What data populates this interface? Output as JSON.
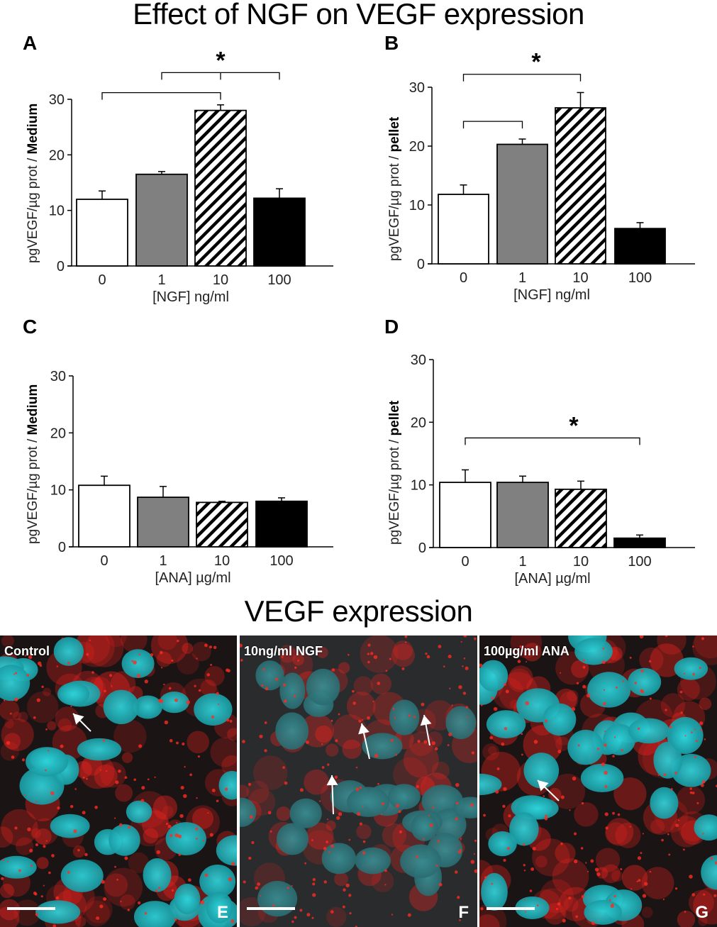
{
  "main_title": "Effect of NGF on VEGF expression",
  "micro_title": "VEGF expression",
  "colors": {
    "control": "#ffffff",
    "low": "#808080",
    "mid": "hatched",
    "high": "#000000",
    "nucleus": "#1fb5bd",
    "vegf_stain": "#e8231f"
  },
  "chart_data": [
    {
      "panel": "A",
      "type": "bar",
      "title": "",
      "xlabel": "[NGF] ng/ml",
      "ylabel": "pgVEGF/µg prot / ",
      "ylabel_bold": "Medium",
      "categories": [
        "0",
        "1",
        "10",
        "100"
      ],
      "values": [
        12,
        16.5,
        28,
        12.2
      ],
      "errors": [
        1.5,
        0.5,
        1.0,
        1.7
      ],
      "fills": [
        "white",
        "gray",
        "hatch",
        "black"
      ],
      "ylim": [
        0,
        30
      ],
      "yticks": [
        "0",
        "10",
        "20",
        "30"
      ],
      "grid": false,
      "significance": [
        {
          "from": 0,
          "to": 2,
          "level": 31.2
        },
        {
          "from": 1,
          "to": 3,
          "level": 34.8,
          "mid": 2
        }
      ],
      "significance_label": "*"
    },
    {
      "panel": "B",
      "type": "bar",
      "title": "",
      "xlabel": "[NGF] ng/ml",
      "ylabel": "pgVEGF/µg prot / ",
      "ylabel_bold": "pellet",
      "categories": [
        "0",
        "1",
        "10",
        "100"
      ],
      "values": [
        11.8,
        20.3,
        26.5,
        6.0
      ],
      "errors": [
        1.6,
        0.9,
        2.6,
        1.0
      ],
      "fills": [
        "white",
        "gray",
        "hatch",
        "black"
      ],
      "ylim": [
        0,
        30
      ],
      "yticks": [
        "0",
        "10",
        "20",
        "30"
      ],
      "grid": false,
      "significance": [
        {
          "from": 0,
          "to": 2,
          "level": 32.2
        },
        {
          "from": 0,
          "to": 1,
          "level": 24.2
        }
      ],
      "significance_label": "*"
    },
    {
      "panel": "C",
      "type": "bar",
      "title": "",
      "xlabel": "[ANA] µg/ml",
      "ylabel": "pgVEGF/µg prot / ",
      "ylabel_bold": "Medium",
      "categories": [
        "0",
        "1",
        "10",
        "100"
      ],
      "values": [
        10.8,
        8.7,
        7.8,
        8.0
      ],
      "errors": [
        1.6,
        1.9,
        0.2,
        0.6
      ],
      "fills": [
        "white",
        "gray",
        "hatch",
        "black"
      ],
      "ylim": [
        0,
        30
      ],
      "yticks": [
        "0",
        "10",
        "20",
        "30"
      ],
      "grid": false,
      "significance": [],
      "significance_label": ""
    },
    {
      "panel": "D",
      "type": "bar",
      "title": "",
      "xlabel": "[ANA] µg/ml",
      "ylabel": "pgVEGF/µg prot / ",
      "ylabel_bold": "pellet",
      "categories": [
        "0",
        "1",
        "10",
        "100"
      ],
      "values": [
        10.4,
        10.4,
        9.3,
        1.5
      ],
      "errors": [
        2.0,
        1.0,
        1.3,
        0.5
      ],
      "fills": [
        "white",
        "gray",
        "hatch",
        "black"
      ],
      "ylim": [
        0,
        30
      ],
      "yticks": [
        "0",
        "10",
        "20",
        "30"
      ],
      "grid": false,
      "significance": [
        {
          "from": 0,
          "to": 3,
          "level": 17.5
        }
      ],
      "significance_label": "*"
    }
  ],
  "micrographs": [
    {
      "label": "Control",
      "letter": "E",
      "arrows": 1
    },
    {
      "label": "10ng/ml NGF",
      "letter": "F",
      "arrows": 3
    },
    {
      "label": "100µg/ml ANA",
      "letter": "G",
      "arrows": 1
    }
  ]
}
